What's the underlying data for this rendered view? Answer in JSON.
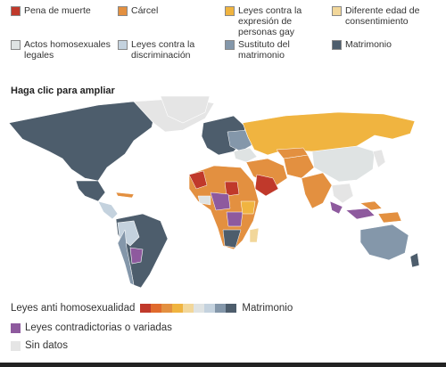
{
  "legend": {
    "items": [
      {
        "label": "Pena de muerte",
        "color": "#c0392b"
      },
      {
        "label": "Cárcel",
        "color": "#e39040"
      },
      {
        "label": "Leyes contra la\nexpresión de\npersonas gay",
        "color": "#f0b440"
      },
      {
        "label": "Diferente edad de\nconsentimiento",
        "color": "#f2d79a"
      },
      {
        "label": "Actos homosexuales\nlegales",
        "color": "#dfe3e3"
      },
      {
        "label": "Leyes contra la\ndiscriminación",
        "color": "#c4d2de"
      },
      {
        "label": "Sustituto del\nmatrimonio",
        "color": "#8497aa"
      },
      {
        "label": "Matrimonio",
        "color": "#4d5d6c"
      }
    ]
  },
  "map_title": "Haga clic para ampliar",
  "bottom_legend": {
    "scale_left": "Leyes anti homosexualidad",
    "scale_right": "Matrimonio",
    "scale_colors": [
      "#c0392b",
      "#e06a2d",
      "#e39040",
      "#f0b440",
      "#f2d79a",
      "#dfe3e3",
      "#c4d2de",
      "#8497aa",
      "#4d5d6c"
    ],
    "mixed": {
      "label": "Leyes contradictorias o variadas",
      "color": "#8e5a9e"
    },
    "nodata": {
      "label": "Sin datos",
      "color": "#e5e5e5"
    }
  }
}
